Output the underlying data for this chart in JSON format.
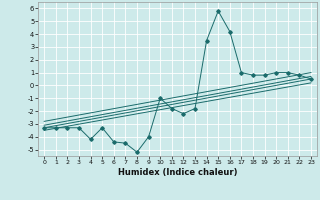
{
  "title": "",
  "xlabel": "Humidex (Indice chaleur)",
  "bg_color": "#cdeaea",
  "grid_color": "#b8d8d8",
  "line_color": "#1a6b6b",
  "xlim": [
    -0.5,
    23.5
  ],
  "ylim": [
    -5.5,
    6.5
  ],
  "xticks": [
    0,
    1,
    2,
    3,
    4,
    5,
    6,
    7,
    8,
    9,
    10,
    11,
    12,
    13,
    14,
    15,
    16,
    17,
    18,
    19,
    20,
    21,
    22,
    23
  ],
  "yticks": [
    -5,
    -4,
    -3,
    -2,
    -1,
    0,
    1,
    2,
    3,
    4,
    5,
    6
  ],
  "series1_x": [
    0,
    1,
    2,
    3,
    4,
    5,
    6,
    7,
    8,
    9,
    10,
    11,
    12,
    13,
    14,
    15,
    16,
    17,
    18,
    19,
    20,
    21,
    22,
    23
  ],
  "series1_y": [
    -3.3,
    -3.3,
    -3.3,
    -3.3,
    -4.2,
    -3.3,
    -4.4,
    -4.5,
    -5.2,
    -4.0,
    -1.0,
    -1.8,
    -2.2,
    -1.8,
    3.5,
    5.8,
    4.2,
    1.0,
    0.8,
    0.8,
    1.0,
    1.0,
    0.8,
    0.5
  ],
  "trend1_x": [
    0,
    23
  ],
  "trend1_y": [
    -3.3,
    0.5
  ],
  "trend2_x": [
    0,
    23
  ],
  "trend2_y": [
    -3.1,
    0.7
  ],
  "trend3_x": [
    0,
    23
  ],
  "trend3_y": [
    -2.8,
    1.0
  ],
  "trend4_x": [
    0,
    23
  ],
  "trend4_y": [
    -3.5,
    0.2
  ]
}
